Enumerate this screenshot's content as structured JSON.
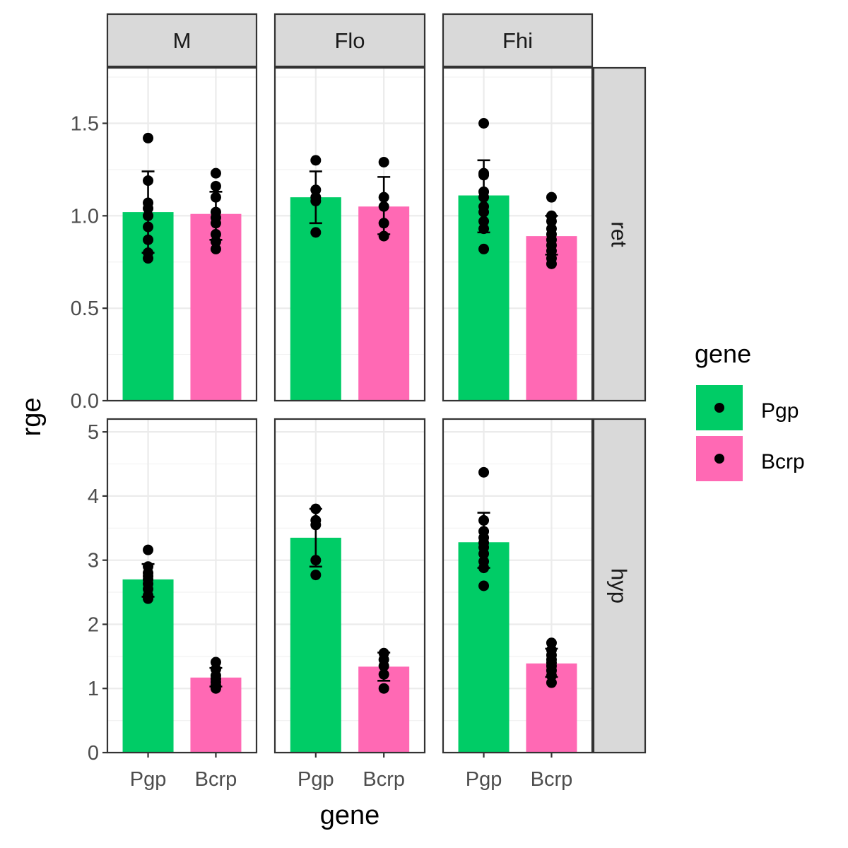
{
  "chart_data": {
    "type": "bar",
    "xlabel": "gene",
    "ylabel": "rge",
    "categories": [
      "Pgp",
      "Bcrp"
    ],
    "column_facets": [
      "M",
      "Flo",
      "Fhi"
    ],
    "row_facets": [
      "ret",
      "hyp"
    ],
    "legend": {
      "title": "gene",
      "position": "right",
      "entries": [
        {
          "label": "Pgp",
          "color": "#00CC66"
        },
        {
          "label": "Bcrp",
          "color": "#FF69B4"
        }
      ]
    },
    "grid": true,
    "rows": [
      {
        "facet": "ret",
        "ylim": [
          0,
          1.8
        ],
        "yticks": [
          0.0,
          0.5,
          1.0,
          1.5
        ],
        "ytick_labels": [
          "0.0",
          "0.5",
          "1.0",
          "1.5"
        ],
        "panels": [
          {
            "facet": "M",
            "bars": [
              {
                "gene": "Pgp",
                "mean": 1.02,
                "err": [
                  0.8,
                  1.24
                ],
                "points": [
                  1.42,
                  1.19,
                  1.07,
                  1.04,
                  1.0,
                  0.94,
                  0.87,
                  0.8,
                  0.77
                ]
              },
              {
                "gene": "Bcrp",
                "mean": 1.01,
                "err": [
                  0.87,
                  1.13
                ],
                "points": [
                  1.23,
                  1.16,
                  1.1,
                  1.02,
                  0.99,
                  0.96,
                  0.9,
                  0.86,
                  0.82
                ]
              }
            ]
          },
          {
            "facet": "Flo",
            "bars": [
              {
                "gene": "Pgp",
                "mean": 1.1,
                "err": [
                  0.96,
                  1.24
                ],
                "points": [
                  1.3,
                  1.14,
                  1.1,
                  1.08,
                  0.91
                ]
              },
              {
                "gene": "Bcrp",
                "mean": 1.05,
                "err": [
                  0.9,
                  1.21
                ],
                "points": [
                  1.29,
                  1.1,
                  1.05,
                  0.96,
                  0.89
                ]
              }
            ]
          },
          {
            "facet": "Fhi",
            "bars": [
              {
                "gene": "Pgp",
                "mean": 1.11,
                "err": [
                  0.91,
                  1.3
                ],
                "points": [
                  1.5,
                  1.23,
                  1.22,
                  1.13,
                  1.1,
                  1.05,
                  1.02,
                  0.97,
                  0.93,
                  0.82
                ]
              },
              {
                "gene": "Bcrp",
                "mean": 0.89,
                "err": [
                  0.79,
                  1.0
                ],
                "points": [
                  1.1,
                  1.0,
                  0.97,
                  0.93,
                  0.9,
                  0.87,
                  0.84,
                  0.81,
                  0.77,
                  0.74
                ]
              }
            ]
          }
        ]
      },
      {
        "facet": "hyp",
        "ylim": [
          0,
          5.2
        ],
        "yticks": [
          0,
          1,
          2,
          3,
          4,
          5
        ],
        "ytick_labels": [
          "0",
          "1",
          "2",
          "3",
          "4",
          "5"
        ],
        "panels": [
          {
            "facet": "M",
            "bars": [
              {
                "gene": "Pgp",
                "mean": 2.7,
                "err": [
                  2.43,
                  2.94
                ],
                "points": [
                  3.16,
                  2.9,
                  2.8,
                  2.75,
                  2.7,
                  2.63,
                  2.55,
                  2.45,
                  2.4
                ]
              },
              {
                "gene": "Bcrp",
                "mean": 1.17,
                "err": [
                  1.03,
                  1.32
                ],
                "points": [
                  1.41,
                  1.3,
                  1.2,
                  1.15,
                  1.1,
                  1.05,
                  1.0
                ]
              }
            ]
          },
          {
            "facet": "Flo",
            "bars": [
              {
                "gene": "Pgp",
                "mean": 3.35,
                "err": [
                  2.9,
                  3.8
                ],
                "points": [
                  3.8,
                  3.62,
                  3.55,
                  3.0,
                  2.77
                ]
              },
              {
                "gene": "Bcrp",
                "mean": 1.34,
                "err": [
                  1.12,
                  1.56
                ],
                "points": [
                  1.55,
                  1.45,
                  1.35,
                  1.22,
                  1.0
                ]
              }
            ]
          },
          {
            "facet": "Fhi",
            "bars": [
              {
                "gene": "Pgp",
                "mean": 3.28,
                "err": [
                  2.88,
                  3.74
                ],
                "points": [
                  4.37,
                  3.62,
                  3.45,
                  3.35,
                  3.27,
                  3.2,
                  3.1,
                  2.98,
                  2.88,
                  2.6
                ]
              },
              {
                "gene": "Bcrp",
                "mean": 1.39,
                "err": [
                  1.18,
                  1.62
                ],
                "points": [
                  1.71,
                  1.6,
                  1.52,
                  1.45,
                  1.4,
                  1.35,
                  1.28,
                  1.2,
                  1.09
                ]
              }
            ]
          }
        ]
      }
    ]
  }
}
